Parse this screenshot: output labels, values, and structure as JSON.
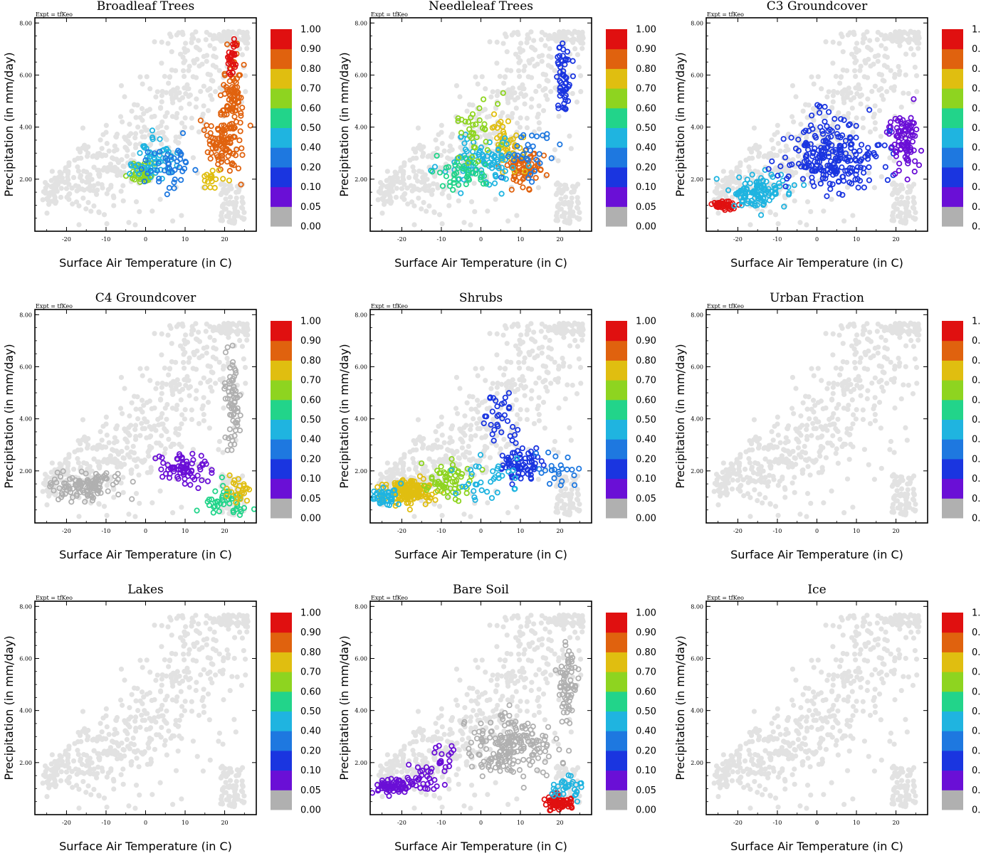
{
  "expt_label": "Expt = tfKeo",
  "xlabel": "Surface Air Temperature (in C)",
  "ylabel": "Precipitation (in mm/day)",
  "colorbar": {
    "labels": [
      "0.00",
      "0.05",
      "0.10",
      "0.20",
      "0.40",
      "0.50",
      "0.60",
      "0.70",
      "0.80",
      "0.90",
      "1.00"
    ],
    "colors": [
      "#b0b0b0",
      "#6a0fd6",
      "#1a35e0",
      "#1e78e0",
      "#1fb4e0",
      "#22d48a",
      "#8ed420",
      "#e0be10",
      "#e0620e",
      "#e01010"
    ]
  },
  "background_color": "#e2e2e2",
  "chart_data": [
    {
      "type": "scatter",
      "title": "Broadleaf Trees",
      "xlim": [
        -28,
        28
      ],
      "ylim": [
        0,
        8.2
      ],
      "xticks": [
        "-20",
        "-10",
        "0",
        "10",
        "20"
      ],
      "yticks": [
        "2.00",
        "4.00",
        "6.00",
        "8.00"
      ],
      "clusters": [
        {
          "x": 22,
          "y": 5.2,
          "dx": 2.5,
          "dy": 1.6,
          "n": 90,
          "c": 8
        },
        {
          "x": 20,
          "y": 3.4,
          "dx": 4,
          "dy": 0.9,
          "n": 90,
          "c": 8
        },
        {
          "x": 22,
          "y": 6.8,
          "dx": 1.5,
          "dy": 0.7,
          "n": 25,
          "c": 9
        },
        {
          "x": -1,
          "y": 2.2,
          "dx": 3,
          "dy": 0.4,
          "n": 50,
          "c": 6
        },
        {
          "x": 2,
          "y": 2.8,
          "dx": 5,
          "dy": 0.8,
          "n": 55,
          "c": 4
        },
        {
          "x": 6,
          "y": 2.5,
          "dx": 6,
          "dy": 0.9,
          "n": 45,
          "c": 3
        },
        {
          "x": 17,
          "y": 2.0,
          "dx": 3,
          "dy": 0.5,
          "n": 18,
          "c": 7
        }
      ]
    },
    {
      "type": "scatter",
      "title": "Needleleaf Trees",
      "xlim": [
        -28,
        28
      ],
      "ylim": [
        0,
        8.2
      ],
      "xticks": [
        "-20",
        "-10",
        "0",
        "10",
        "20"
      ],
      "yticks": [
        "2.00",
        "4.00",
        "6.00",
        "8.00"
      ],
      "clusters": [
        {
          "x": 21,
          "y": 5.8,
          "dx": 2,
          "dy": 1.4,
          "n": 55,
          "c": 2
        },
        {
          "x": 11,
          "y": 2.4,
          "dx": 4,
          "dy": 0.6,
          "n": 70,
          "c": 8
        },
        {
          "x": 6,
          "y": 3.5,
          "dx": 4,
          "dy": 0.9,
          "n": 45,
          "c": 7
        },
        {
          "x": 0,
          "y": 2.6,
          "dx": 8,
          "dy": 0.8,
          "n": 90,
          "c": 4
        },
        {
          "x": -5,
          "y": 2.2,
          "dx": 6,
          "dy": 0.7,
          "n": 45,
          "c": 5
        },
        {
          "x": -2,
          "y": 3.8,
          "dx": 5,
          "dy": 1.0,
          "n": 35,
          "c": 6
        },
        {
          "x": 12,
          "y": 3.0,
          "dx": 5,
          "dy": 1.0,
          "n": 30,
          "c": 3
        }
      ]
    },
    {
      "type": "scatter",
      "title": "C3 Groundcover",
      "xlim": [
        -28,
        28
      ],
      "ylim": [
        0,
        8.2
      ],
      "xticks": [
        "-20",
        "-10",
        "0",
        "10",
        "20"
      ],
      "yticks": [
        "2.00",
        "4.00",
        "6.00",
        "8.00"
      ],
      "clusters": [
        {
          "x": -24,
          "y": 1.0,
          "dx": 3,
          "dy": 0.2,
          "n": 45,
          "c": 9
        },
        {
          "x": -15,
          "y": 1.5,
          "dx": 7,
          "dy": 0.5,
          "n": 110,
          "c": 4
        },
        {
          "x": 5,
          "y": 2.6,
          "dx": 12,
          "dy": 1.0,
          "n": 190,
          "c": 2
        },
        {
          "x": 22,
          "y": 3.5,
          "dx": 3,
          "dy": 1.2,
          "n": 90,
          "c": 1
        },
        {
          "x": 3,
          "y": 4.0,
          "dx": 8,
          "dy": 1.0,
          "n": 45,
          "c": 2
        }
      ]
    },
    {
      "type": "scatter",
      "title": "C4 Groundcover",
      "xlim": [
        -28,
        28
      ],
      "ylim": [
        0,
        8.2
      ],
      "xticks": [
        "-20",
        "-10",
        "0",
        "10",
        "20"
      ],
      "yticks": [
        "2.00",
        "4.00",
        "6.00",
        "8.00"
      ],
      "clusters": [
        {
          "x": -15,
          "y": 1.4,
          "dx": 8,
          "dy": 0.5,
          "n": 120,
          "c": 0
        },
        {
          "x": 22,
          "y": 4.5,
          "dx": 1.5,
          "dy": 1.6,
          "n": 70,
          "c": 0
        },
        {
          "x": 10,
          "y": 2.1,
          "dx": 6,
          "dy": 0.6,
          "n": 70,
          "c": 1
        },
        {
          "x": 20,
          "y": 0.8,
          "dx": 4,
          "dy": 0.5,
          "n": 45,
          "c": 5
        },
        {
          "x": 23,
          "y": 1.2,
          "dx": 3,
          "dy": 0.5,
          "n": 25,
          "c": 7
        }
      ]
    },
    {
      "type": "scatter",
      "title": "Shrubs",
      "xlim": [
        -28,
        28
      ],
      "ylim": [
        0,
        8.2
      ],
      "xticks": [
        "-20",
        "-10",
        "0",
        "10",
        "20"
      ],
      "yticks": [
        "2.00",
        "4.00",
        "6.00",
        "8.00"
      ],
      "clusters": [
        {
          "x": -18,
          "y": 1.2,
          "dx": 6,
          "dy": 0.4,
          "n": 160,
          "c": 7
        },
        {
          "x": -24,
          "y": 1.0,
          "dx": 3,
          "dy": 0.3,
          "n": 40,
          "c": 4
        },
        {
          "x": -8,
          "y": 1.6,
          "dx": 6,
          "dy": 0.6,
          "n": 60,
          "c": 6
        },
        {
          "x": 10,
          "y": 2.3,
          "dx": 5,
          "dy": 0.6,
          "n": 70,
          "c": 2
        },
        {
          "x": 5,
          "y": 3.8,
          "dx": 4,
          "dy": 1.2,
          "n": 35,
          "c": 2
        },
        {
          "x": 2,
          "y": 1.7,
          "dx": 8,
          "dy": 0.7,
          "n": 35,
          "c": 4
        },
        {
          "x": 20,
          "y": 2.0,
          "dx": 4,
          "dy": 0.6,
          "n": 25,
          "c": 3
        }
      ]
    },
    {
      "type": "scatter",
      "title": "Urban Fraction",
      "xlim": [
        -28,
        28
      ],
      "ylim": [
        0,
        8.2
      ],
      "xticks": [
        "-20",
        "-10",
        "0",
        "10",
        "20"
      ],
      "yticks": [
        "2.00",
        "4.00",
        "6.00",
        "8.00"
      ],
      "clusters": []
    },
    {
      "type": "scatter",
      "title": "Lakes",
      "xlim": [
        -28,
        28
      ],
      "ylim": [
        0,
        8.2
      ],
      "xticks": [
        "-20",
        "-10",
        "0",
        "10",
        "20"
      ],
      "yticks": [
        "2.00",
        "4.00",
        "6.00",
        "8.00"
      ],
      "clusters": []
    },
    {
      "type": "scatter",
      "title": "Bare Soil",
      "xlim": [
        -28,
        28
      ],
      "ylim": [
        0,
        8.2
      ],
      "xticks": [
        "-20",
        "-10",
        "0",
        "10",
        "20"
      ],
      "yticks": [
        "2.00",
        "4.00",
        "6.00",
        "8.00"
      ],
      "clusters": [
        {
          "x": 8,
          "y": 2.6,
          "dx": 10,
          "dy": 1.0,
          "n": 190,
          "c": 0
        },
        {
          "x": 22,
          "y": 5.0,
          "dx": 2,
          "dy": 1.5,
          "n": 70,
          "c": 0
        },
        {
          "x": -22,
          "y": 1.1,
          "dx": 4,
          "dy": 0.25,
          "n": 70,
          "c": 1
        },
        {
          "x": -15,
          "y": 1.5,
          "dx": 4,
          "dy": 0.5,
          "n": 30,
          "c": 1
        },
        {
          "x": -10,
          "y": 2.2,
          "dx": 3,
          "dy": 0.6,
          "n": 15,
          "c": 1
        },
        {
          "x": 20,
          "y": 0.45,
          "dx": 3,
          "dy": 0.3,
          "n": 70,
          "c": 9
        },
        {
          "x": 22,
          "y": 1.0,
          "dx": 5,
          "dy": 0.4,
          "n": 30,
          "c": 4
        }
      ]
    },
    {
      "type": "scatter",
      "title": "Ice",
      "xlim": [
        -28,
        28
      ],
      "ylim": [
        0,
        8.2
      ],
      "xticks": [
        "-20",
        "-10",
        "0",
        "10",
        "20"
      ],
      "yticks": [
        "2.00",
        "4.00",
        "6.00",
        "8.00"
      ],
      "clusters": []
    }
  ]
}
